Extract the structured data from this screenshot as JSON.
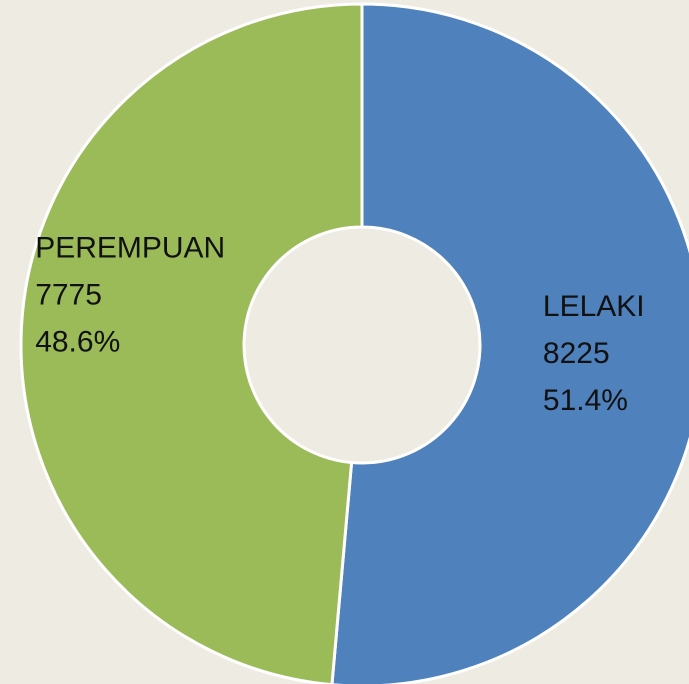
{
  "chart_data": {
    "type": "donut",
    "categories": [
      "LELAKI",
      "PEREMPUAN"
    ],
    "values": [
      8225,
      7775
    ],
    "percent_labels": [
      "51.4%",
      "48.6%"
    ],
    "colors": [
      "#4f81bd",
      "#9bbb59"
    ]
  }
}
